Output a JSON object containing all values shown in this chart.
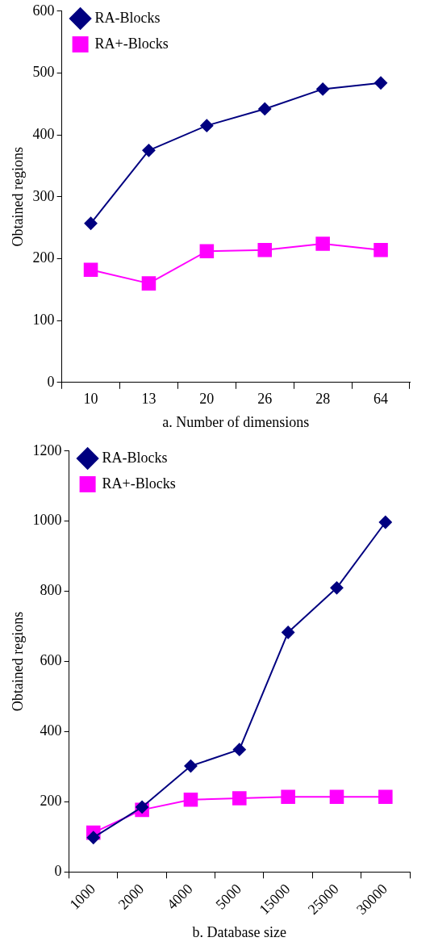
{
  "chart_data": [
    {
      "type": "line",
      "xlabel": "a. Number of dimensions",
      "ylabel": "Obtained regions",
      "categories": [
        "10",
        "13",
        "20",
        "26",
        "28",
        "64"
      ],
      "series": [
        {
          "name": "RA-Blocks",
          "color": "#000080",
          "marker": "diamond",
          "values": [
            257,
            375,
            415,
            442,
            474,
            484
          ]
        },
        {
          "name": "RA+-Blocks",
          "color": "#ff00ff",
          "marker": "square",
          "values": [
            182,
            160,
            212,
            214,
            224,
            214
          ]
        }
      ],
      "ylim": [
        0,
        600
      ],
      "yticks": [
        0,
        100,
        200,
        300,
        400,
        500,
        600
      ],
      "grid": false,
      "legend": "top left"
    },
    {
      "type": "line",
      "xlabel": "b. Database size",
      "ylabel": "Obtained regions",
      "categories": [
        "1000",
        "2000",
        "4000",
        "5000",
        "15000",
        "25000",
        "30000"
      ],
      "series": [
        {
          "name": "RA-Blocks",
          "color": "#000080",
          "marker": "diamond",
          "values": [
            98,
            185,
            302,
            349,
            683,
            810,
            997
          ]
        },
        {
          "name": "RA+-Blocks",
          "color": "#ff00ff",
          "marker": "square",
          "values": [
            112,
            177,
            206,
            210,
            214,
            214,
            214
          ]
        }
      ],
      "ylim": [
        0,
        1200
      ],
      "yticks": [
        0,
        200,
        400,
        600,
        800,
        1000,
        1200
      ],
      "grid": false,
      "legend": "top left"
    }
  ]
}
